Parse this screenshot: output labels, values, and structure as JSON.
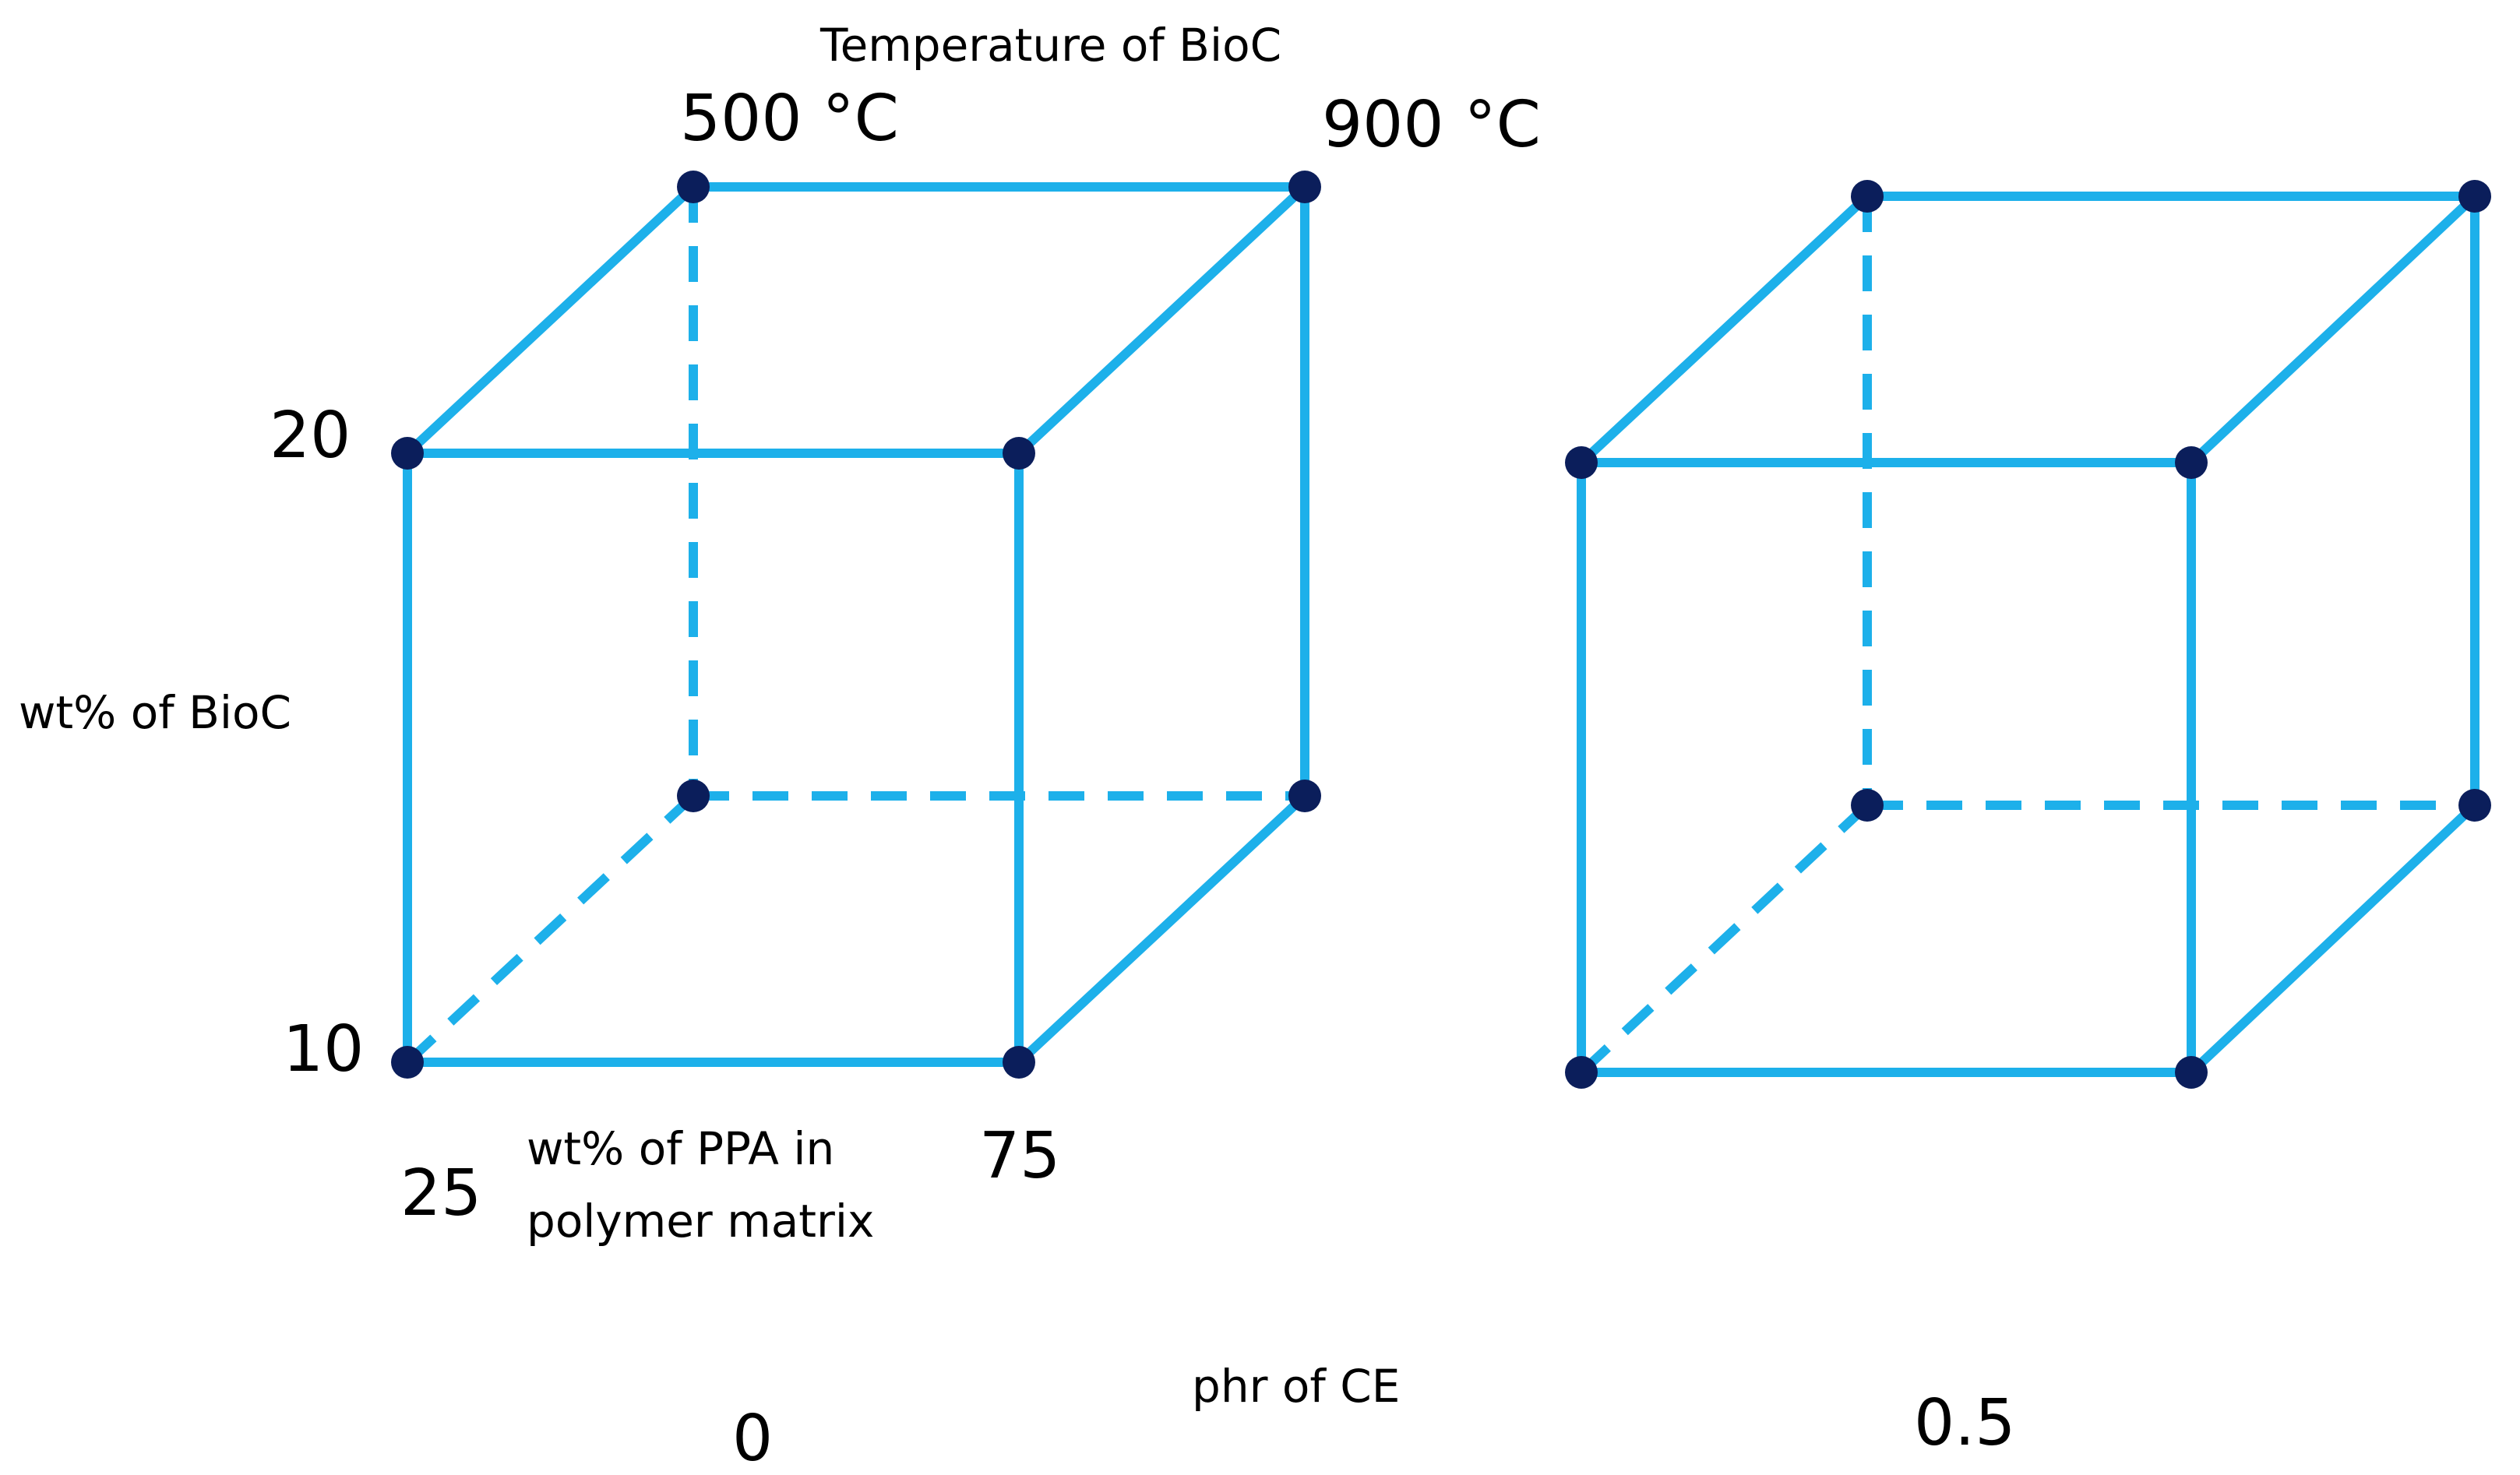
{
  "colors": {
    "edge": "#1DB0EA",
    "vertex": "#0B1E5B",
    "text": "#000000"
  },
  "labels": {
    "temperature_axis": "Temperature  of BioC",
    "temp_low": "500 °C",
    "temp_high": "900 °C",
    "wt_bioc_axis": "wt% of BioC",
    "wt_bioc_high": "20",
    "wt_bioc_low": "10",
    "ppa_axis_line1": "wt% of PPA in",
    "ppa_axis_line2": "polymer matrix",
    "ppa_low": "25",
    "ppa_high": "75",
    "ce_axis": "phr of CE",
    "ce_low": "0",
    "ce_high": "0.5"
  },
  "cubes": [
    {
      "name": "cube-ce-0"
    },
    {
      "name": "cube-ce-0-5"
    }
  ]
}
